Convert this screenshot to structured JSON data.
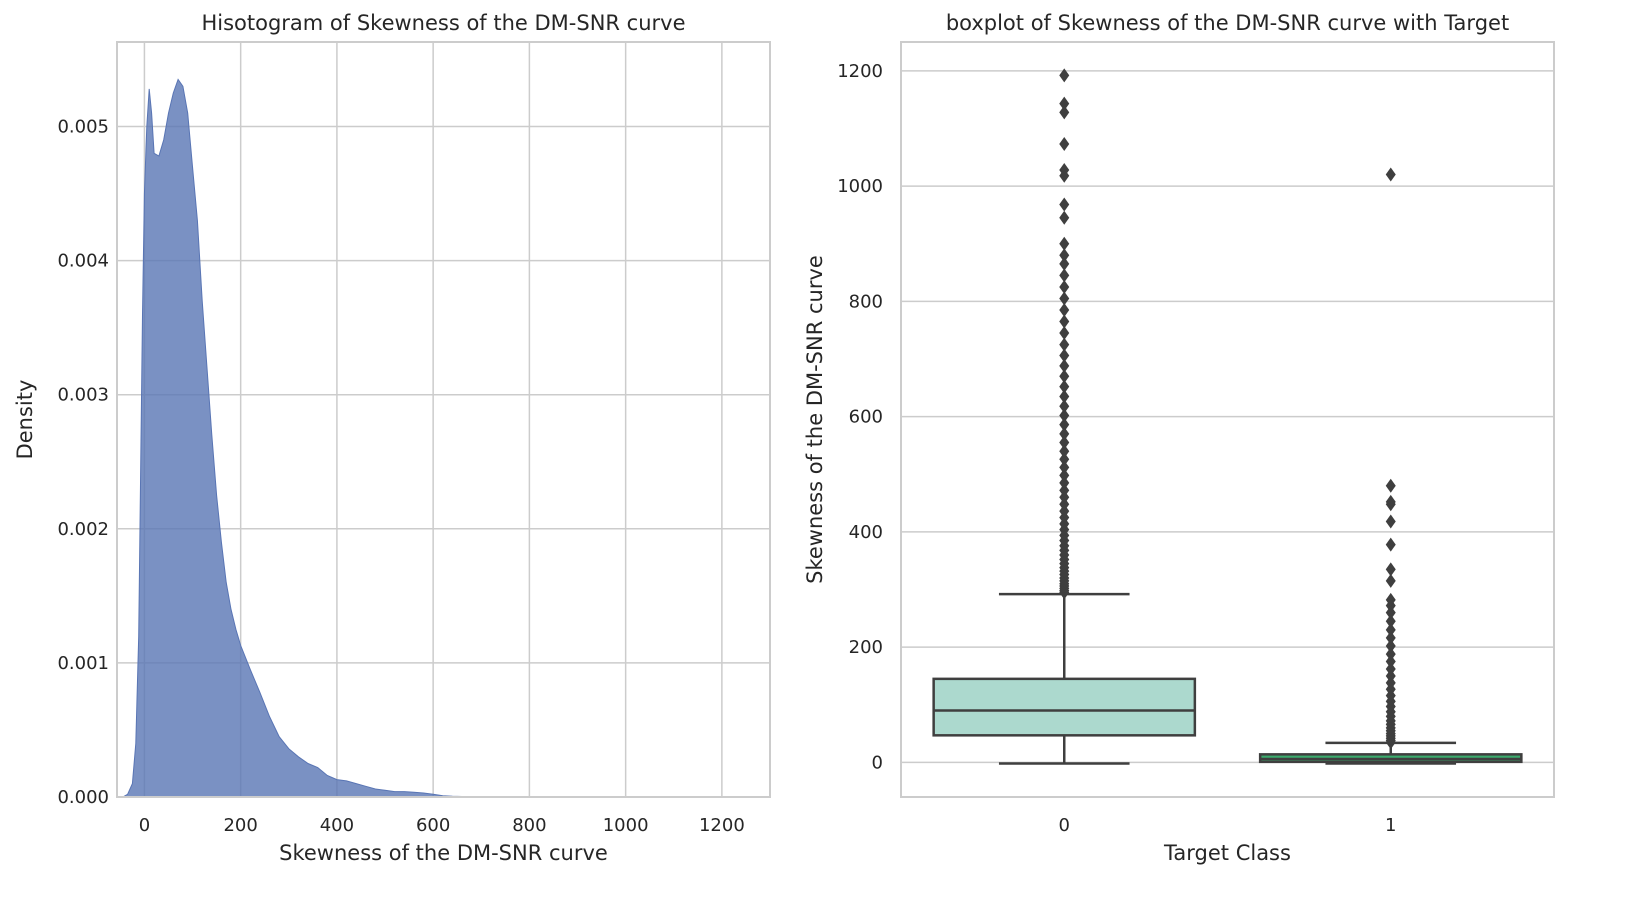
{
  "chart_data": [
    {
      "type": "area",
      "title": "Hisotogram of Skewness of the DM-SNR curve",
      "xlabel": "Skewness of the DM-SNR curve",
      "ylabel": "Density",
      "xlim": [
        -57,
        1300
      ],
      "ylim": [
        0,
        0.00563
      ],
      "xticks": [
        "0",
        "200",
        "400",
        "600",
        "800",
        "1000",
        "1200"
      ],
      "yticks": [
        "0.000",
        "0.001",
        "0.002",
        "0.003",
        "0.004",
        "0.005"
      ],
      "grid": true,
      "color": "#5975b4",
      "x": [
        -45,
        -35,
        -25,
        -18,
        -12,
        -8,
        -4,
        0,
        5,
        10,
        15,
        20,
        30,
        40,
        50,
        60,
        70,
        80,
        90,
        100,
        110,
        120,
        130,
        140,
        150,
        160,
        170,
        180,
        190,
        200,
        220,
        240,
        260,
        280,
        300,
        320,
        340,
        360,
        380,
        400,
        420,
        440,
        460,
        480,
        500,
        520,
        540,
        560,
        580,
        600,
        620,
        640,
        660,
        680,
        700
      ],
      "y": [
        0.0,
        2e-05,
        0.0001,
        0.0004,
        0.0012,
        0.0024,
        0.0036,
        0.0045,
        0.005,
        0.00528,
        0.0051,
        0.0048,
        0.00478,
        0.0049,
        0.0051,
        0.00525,
        0.00535,
        0.0053,
        0.0051,
        0.0047,
        0.0043,
        0.0037,
        0.0032,
        0.0027,
        0.00225,
        0.0019,
        0.0016,
        0.0014,
        0.00125,
        0.00113,
        0.00095,
        0.00078,
        0.0006,
        0.00045,
        0.00036,
        0.0003,
        0.00025,
        0.00022,
        0.00016,
        0.00013,
        0.00012,
        0.0001,
        8e-05,
        6e-05,
        5e-05,
        4e-05,
        4e-05,
        3.5e-05,
        3e-05,
        2e-05,
        1e-05,
        5e-06,
        4e-06,
        3e-06,
        0.0
      ]
    },
    {
      "type": "box",
      "title": "boxplot of Skewness of the DM-SNR curve with Target",
      "xlabel": "Target Class",
      "ylabel": "Skewness of the DM-SNR curve",
      "ylim": [
        -60,
        1250
      ],
      "categories": [
        "0",
        "1"
      ],
      "yticks": [
        "0",
        "200",
        "400",
        "600",
        "800",
        "1000",
        "1200"
      ],
      "grid": true,
      "boxes": [
        {
          "category": "0",
          "whisker_low": -1.9,
          "q1": 47,
          "median": 90,
          "q3": 145,
          "whisker_high": 292,
          "color": "#acd9ce",
          "outliers": [
            295,
            298,
            302,
            306,
            310,
            315,
            320,
            326,
            332,
            338,
            345,
            352,
            360,
            368,
            376,
            385,
            394,
            404,
            414,
            425,
            436,
            448,
            460,
            472,
            485,
            498,
            512,
            526,
            540,
            555,
            570,
            586,
            602,
            618,
            635,
            652,
            670,
            688,
            706,
            725,
            745,
            765,
            785,
            805,
            825,
            845,
            865,
            880,
            900,
            945,
            968,
            1018,
            1028,
            1073,
            1128,
            1143,
            1192
          ]
        },
        {
          "category": "1",
          "whisker_low": -1.9,
          "q1": 1,
          "median": 6,
          "q3": 14,
          "whisker_high": 34,
          "color": "#3cab6d",
          "outliers": [
            35,
            38,
            42,
            46,
            50,
            55,
            60,
            66,
            72,
            80,
            88,
            97,
            106,
            116,
            127,
            138,
            150,
            162,
            175,
            188,
            202,
            216,
            230,
            245,
            260,
            272,
            282,
            315,
            335,
            378,
            418,
            448,
            452,
            480,
            1020
          ]
        }
      ]
    }
  ]
}
